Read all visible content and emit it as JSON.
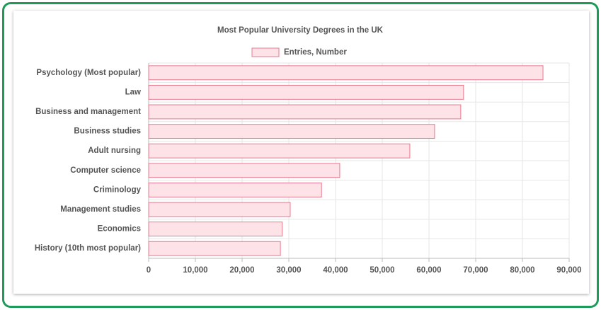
{
  "chart_data": {
    "type": "bar",
    "orientation": "horizontal",
    "title": "Most Popular University Degrees in the UK",
    "categories": [
      "Psychology (Most popular)",
      "Law",
      "Business and management",
      "Business studies",
      "Adult nursing",
      "Computer science",
      "Criminology",
      "Management studies",
      "Economics",
      "History (10th most popular)"
    ],
    "series": [
      {
        "name": "Entries, Number",
        "color": "#e8788c",
        "values": [
          84400,
          67400,
          66800,
          61200,
          55900,
          40900,
          37000,
          30300,
          28600,
          28200
        ]
      }
    ],
    "xlim": [
      0,
      90000
    ],
    "xticks": [
      0,
      {
        "value": 10000,
        "label": "10,000"
      },
      {
        "value": 20000,
        "label": "20,000"
      },
      {
        "value": 30000,
        "label": "30,000"
      },
      {
        "value": 40000,
        "label": "40,000"
      },
      {
        "value": 50000,
        "label": "50,000"
      },
      {
        "value": 60000,
        "label": "60,000"
      },
      {
        "value": 70000,
        "label": "70,000"
      },
      {
        "value": 80000,
        "label": "80,000"
      },
      {
        "value": 90000,
        "label": "90,000"
      }
    ],
    "grid": true,
    "legend": "top"
  }
}
